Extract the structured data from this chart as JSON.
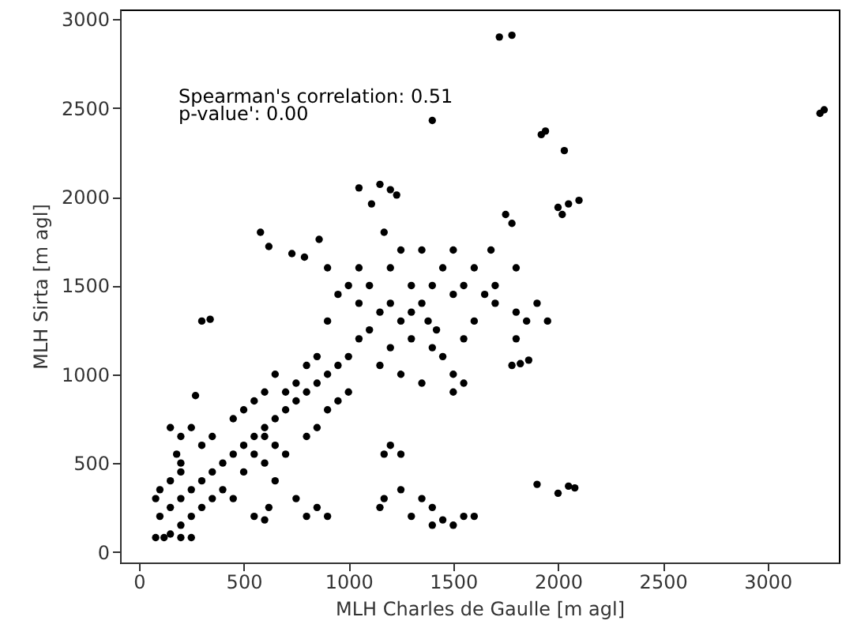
{
  "chart_data": {
    "type": "scatter",
    "xlabel": "MLH Charles de Gaulle [m agl]",
    "ylabel": "MLH Sirta [m agl]",
    "annotations": [
      "Spearman's correlation: 0.51",
      "p-value': 0.00"
    ],
    "xlim": [
      -90,
      3340
    ],
    "ylim": [
      -60,
      3055
    ],
    "xticks": [
      0,
      500,
      1000,
      1500,
      2000,
      2500,
      3000
    ],
    "yticks": [
      0,
      500,
      1000,
      1500,
      2000,
      2500,
      3000
    ],
    "grid": false,
    "marker": "circle",
    "x": [
      1720,
      1780,
      3250,
      3270,
      1400,
      1920,
      1940,
      2030,
      1050,
      1150,
      1200,
      1230,
      1110,
      860,
      790,
      580,
      620,
      730,
      1200,
      1170,
      1750,
      1780,
      2000,
      2050,
      2100,
      2020,
      1900,
      1950,
      1850,
      1800,
      1800,
      1780,
      1820,
      1860,
      1300,
      1400,
      1450,
      1500,
      1550,
      1500,
      1600,
      1650,
      1700,
      1680,
      1600,
      1500,
      1450,
      1400,
      1350,
      1300,
      1250,
      1380,
      1420,
      1500,
      1550,
      1350,
      1300,
      1200,
      1150,
      1100,
      1050,
      1000,
      950,
      900,
      850,
      800,
      750,
      700,
      650,
      600,
      550,
      500,
      450,
      400,
      350,
      300,
      250,
      200,
      150,
      100,
      1000,
      950,
      900,
      1050,
      1100,
      1150,
      1200,
      1000,
      950,
      900,
      850,
      800,
      850,
      800,
      750,
      700,
      650,
      600,
      550,
      500,
      450,
      600,
      650,
      700,
      550,
      600,
      500,
      400,
      450,
      350,
      300,
      250,
      200,
      150,
      80,
      250,
      200,
      120,
      100,
      80,
      150,
      200,
      250,
      200,
      150,
      180,
      200,
      300,
      340,
      300,
      270,
      350,
      550,
      600,
      650,
      750,
      800,
      900,
      850,
      620,
      1170,
      1200,
      1250,
      1170,
      1150,
      1250,
      1350,
      1400,
      1450,
      1500,
      1400,
      1550,
      1600,
      1300,
      1900,
      2000,
      2050,
      2080,
      1050,
      900,
      1250,
      1800,
      1700,
      1550,
      1250,
      1350
    ],
    "series": [
      {
        "color": "#000000",
        "values": [
          2900,
          2910,
          2470,
          2490,
          2430,
          2350,
          2370,
          2260,
          2050,
          2070,
          2040,
          2010,
          1960,
          1760,
          1660,
          1800,
          1720,
          1680,
          1600,
          1800,
          1900,
          1850,
          1940,
          1960,
          1980,
          1900,
          1400,
          1300,
          1300,
          1350,
          1200,
          1050,
          1060,
          1080,
          1200,
          1150,
          1100,
          1000,
          950,
          900,
          1300,
          1450,
          1500,
          1700,
          1600,
          1700,
          1600,
          1500,
          1400,
          1350,
          1300,
          1300,
          1250,
          1450,
          1500,
          1700,
          1500,
          1400,
          1350,
          1250,
          1200,
          1100,
          1050,
          1000,
          950,
          900,
          850,
          800,
          750,
          700,
          650,
          600,
          550,
          500,
          450,
          400,
          350,
          300,
          250,
          200,
          1500,
          1450,
          1300,
          1400,
          1500,
          1050,
          1150,
          900,
          850,
          800,
          700,
          650,
          1100,
          1050,
          950,
          900,
          1000,
          900,
          850,
          800,
          750,
          650,
          600,
          550,
          550,
          500,
          450,
          350,
          300,
          300,
          250,
          200,
          150,
          100,
          80,
          80,
          80,
          80,
          350,
          300,
          400,
          450,
          700,
          650,
          700,
          550,
          500,
          1300,
          1310,
          600,
          880,
          650,
          200,
          180,
          400,
          300,
          200,
          200,
          250,
          250,
          550,
          600,
          550,
          300,
          250,
          350,
          300,
          250,
          180,
          150,
          150,
          200,
          200,
          200,
          380,
          330,
          370,
          360,
          1600,
          1600,
          1700,
          1600,
          1400,
          1200,
          1000,
          950
        ]
      }
    ]
  }
}
